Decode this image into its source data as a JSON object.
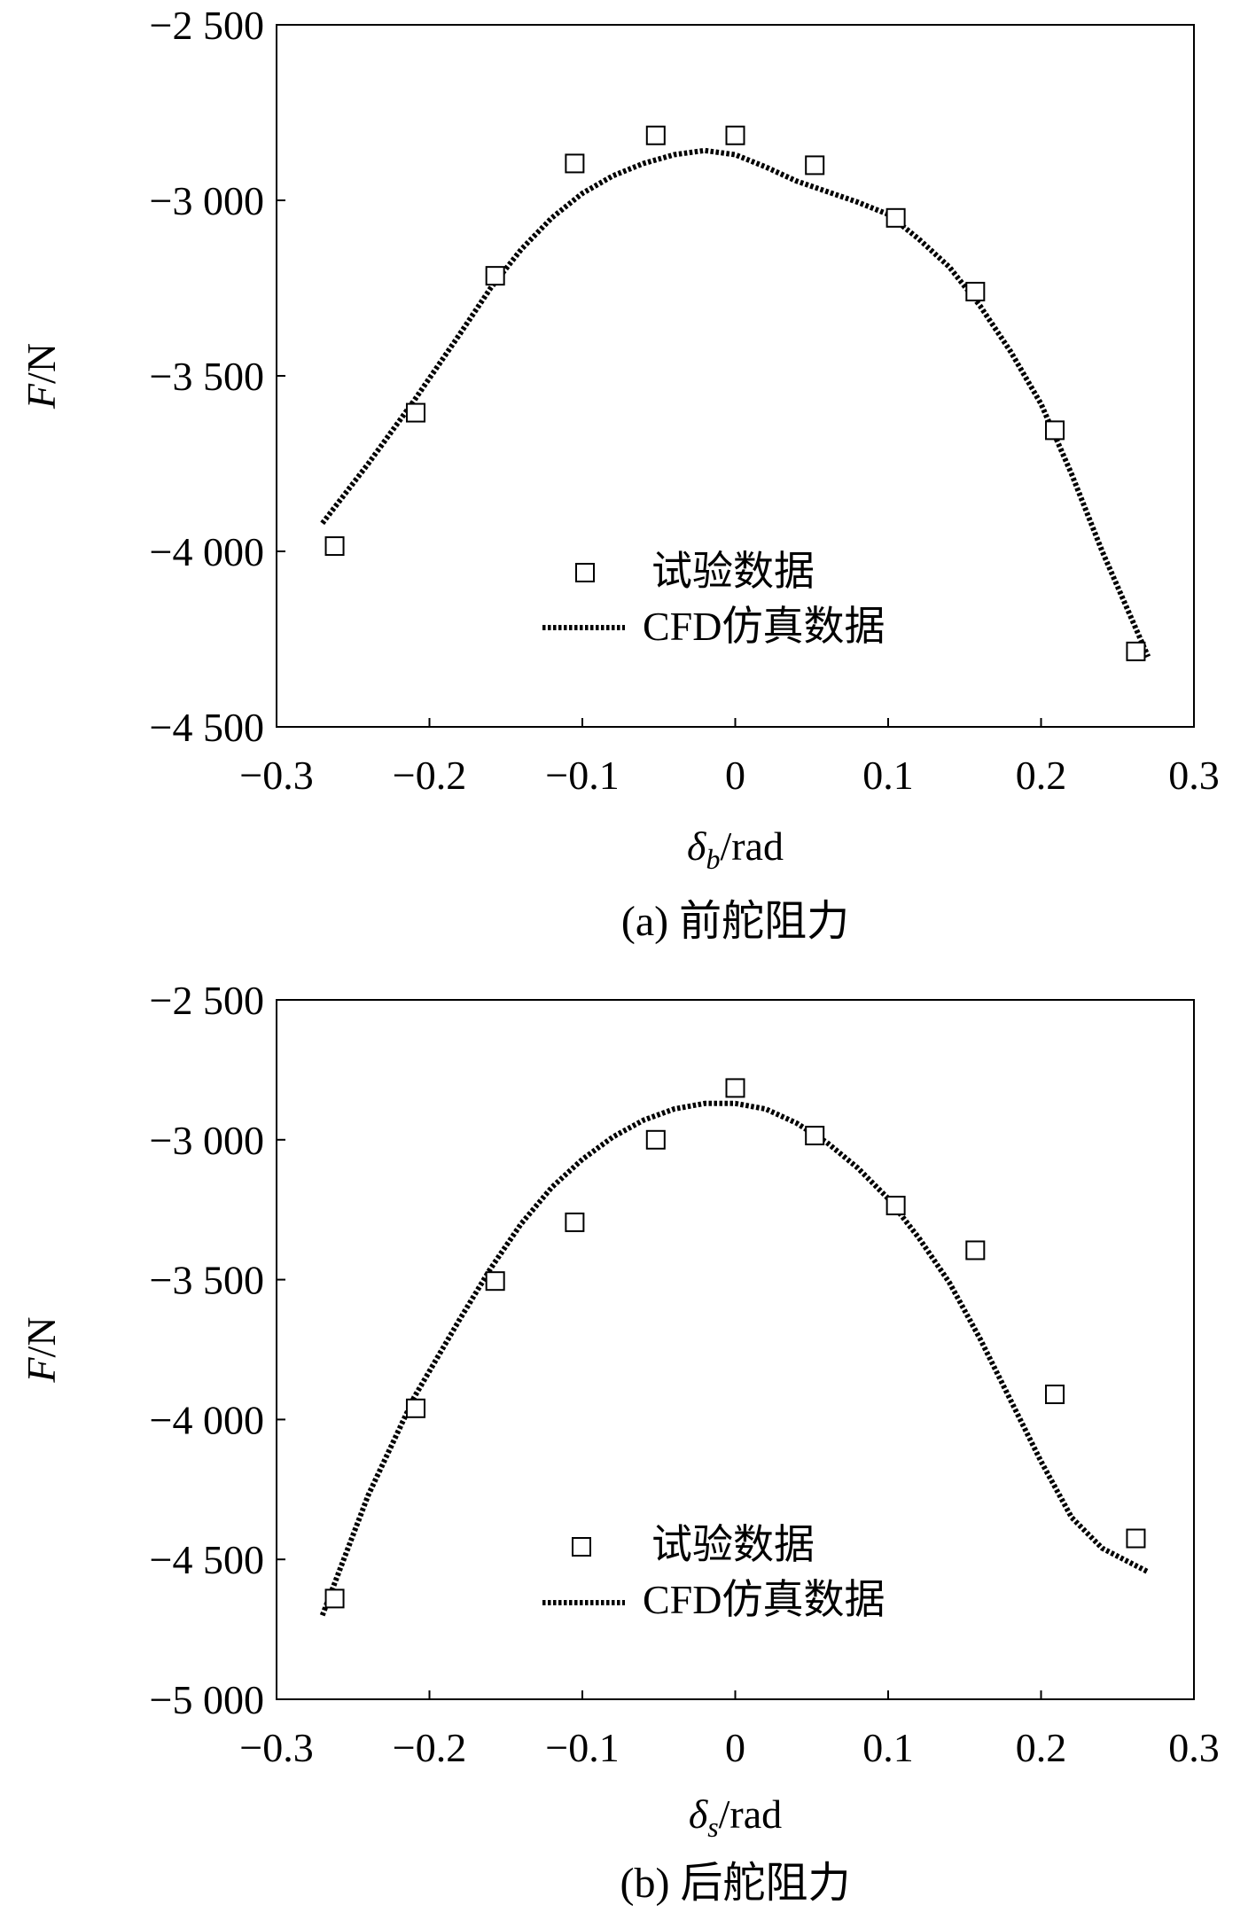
{
  "charts": [
    {
      "caption": "(a) 前舵阻力",
      "chart_data": {
        "type": "scatter+line",
        "xlabel_symbol": "δ",
        "xlabel_sub": "b",
        "xlabel_unit": "/rad",
        "ylabel_symbol": "F",
        "ylabel_unit": "/N",
        "xlim": [
          -0.3,
          0.3
        ],
        "ylim": [
          -4500,
          -2500
        ],
        "xticks": [
          -0.3,
          -0.2,
          -0.1,
          0,
          0.1,
          0.2,
          0.3
        ],
        "xtick_labels": [
          "−0.3",
          "−0.2",
          "−0.1",
          "0",
          "0.1",
          "0.2",
          "0.3"
        ],
        "yticks": [
          -2500,
          -3000,
          -3500,
          -4000,
          -4500
        ],
        "ytick_labels": [
          "−2 500",
          "−3 000",
          "−3 500",
          "−4 000",
          "−4 500"
        ],
        "legend_position": "lower-center",
        "series": [
          {
            "name": "试验数据",
            "kind": "marker-square",
            "x": [
              -0.262,
              -0.209,
              -0.157,
              -0.105,
              -0.052,
              0.0,
              0.052,
              0.105,
              0.157,
              0.209,
              0.262
            ],
            "y": [
              -3985,
              -3605,
              -3215,
              -2895,
              -2815,
              -2815,
              -2900,
              -3050,
              -3260,
              -3655,
              -4285
            ]
          },
          {
            "name": "CFD仿真数据",
            "kind": "dotted-line",
            "x": [
              -0.27,
              -0.24,
              -0.21,
              -0.18,
              -0.16,
              -0.14,
              -0.12,
              -0.1,
              -0.08,
              -0.06,
              -0.04,
              -0.02,
              0.0,
              0.02,
              0.04,
              0.06,
              0.08,
              0.1,
              0.12,
              0.14,
              0.16,
              0.18,
              0.2,
              0.22,
              0.24,
              0.27
            ],
            "y": [
              -3920,
              -3750,
              -3570,
              -3380,
              -3250,
              -3140,
              -3050,
              -2980,
              -2930,
              -2895,
              -2870,
              -2858,
              -2870,
              -2905,
              -2945,
              -2975,
              -3005,
              -3040,
              -3110,
              -3190,
              -3300,
              -3430,
              -3580,
              -3780,
              -4000,
              -4300
            ]
          }
        ]
      }
    },
    {
      "caption": "(b) 后舵阻力",
      "chart_data": {
        "type": "scatter+line",
        "xlabel_symbol": "δ",
        "xlabel_sub": "s",
        "xlabel_unit": "/rad",
        "ylabel_symbol": "F",
        "ylabel_unit": "/N",
        "xlim": [
          -0.3,
          0.3
        ],
        "ylim": [
          -5000,
          -2500
        ],
        "xticks": [
          -0.3,
          -0.2,
          -0.1,
          0,
          0.1,
          0.2,
          0.3
        ],
        "xtick_labels": [
          "−0.3",
          "−0.2",
          "−0.1",
          "0",
          "0.1",
          "0.2",
          "0.3"
        ],
        "yticks": [
          -2500,
          -3000,
          -3500,
          -4000,
          -4500,
          -5000
        ],
        "ytick_labels": [
          "−2 500",
          "−3 000",
          "−3 500",
          "−4 000",
          "−4 500",
          "−5 000"
        ],
        "legend_position": "lower-center",
        "series": [
          {
            "name": "试验数据",
            "kind": "marker-square",
            "x": [
              -0.262,
              -0.209,
              -0.157,
              -0.105,
              -0.052,
              0.0,
              0.052,
              0.105,
              0.157,
              0.209,
              0.262
            ],
            "y": [
              -4640,
              -3960,
              -3505,
              -3295,
              -3000,
              -2815,
              -2985,
              -3235,
              -3395,
              -3910,
              -4425
            ]
          },
          {
            "name": "CFD仿真数据",
            "kind": "dotted-line",
            "x": [
              -0.27,
              -0.24,
              -0.21,
              -0.18,
              -0.16,
              -0.14,
              -0.12,
              -0.1,
              -0.08,
              -0.06,
              -0.04,
              -0.02,
              0.0,
              0.02,
              0.04,
              0.06,
              0.08,
              0.1,
              0.12,
              0.14,
              0.16,
              0.18,
              0.2,
              0.22,
              0.24,
              0.27
            ],
            "y": [
              -4700,
              -4270,
              -3920,
              -3640,
              -3460,
              -3300,
              -3170,
              -3070,
              -2990,
              -2930,
              -2890,
              -2870,
              -2870,
              -2890,
              -2940,
              -3010,
              -3100,
              -3210,
              -3350,
              -3510,
              -3710,
              -3930,
              -4150,
              -4350,
              -4460,
              -4545
            ]
          }
        ]
      }
    }
  ]
}
